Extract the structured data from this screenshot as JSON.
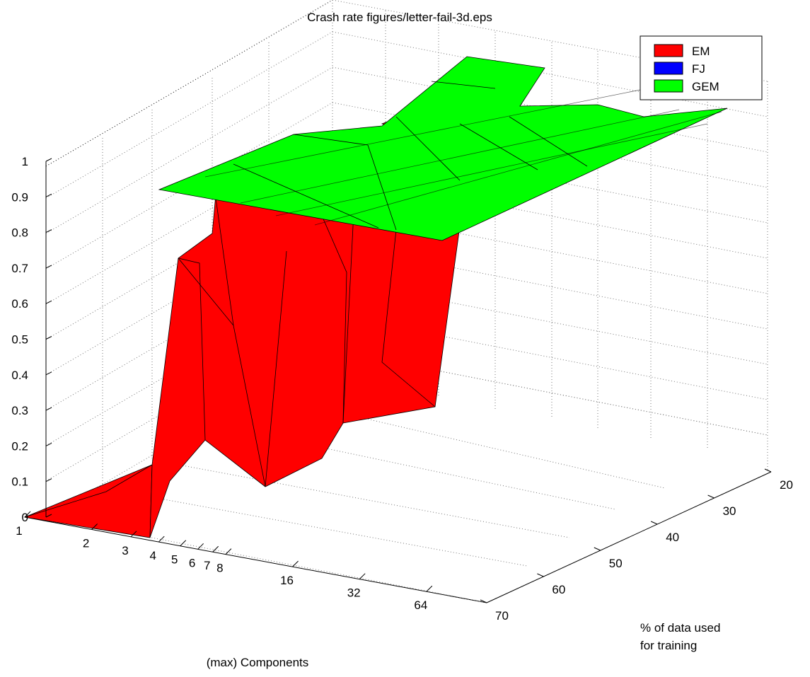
{
  "chart_data": {
    "type": "surface3d",
    "title": "Crash rate figures/letter-fail-3d.eps",
    "xlabel": "(max) Components",
    "ylabel": [
      "% of data used",
      "for training"
    ],
    "zlabel": "",
    "x_ticks": [
      "1",
      "2",
      "3",
      "4",
      "5",
      "6",
      "7",
      "8",
      "16",
      "32",
      "64"
    ],
    "y_ticks": [
      "20",
      "30",
      "40",
      "50",
      "60",
      "70"
    ],
    "z_ticks": [
      "0",
      "0.1",
      "0.2",
      "0.3",
      "0.4",
      "0.5",
      "0.6",
      "0.7",
      "0.8",
      "0.9",
      "1"
    ],
    "zlim": [
      0,
      1
    ],
    "grid": true,
    "legend_position": "top-right",
    "series": [
      {
        "name": "EM",
        "color": "#ff0000",
        "x_components": [
          1,
          2,
          3,
          4,
          8,
          16,
          32,
          64
        ],
        "z_at_70pct": [
          0.0,
          0.0,
          0.0,
          0.75,
          0.87,
          0.9,
          0.93,
          0.97
        ],
        "z_at_20pct": [
          0.0,
          0.0,
          0.1,
          0.9,
          0.97,
          1.0,
          1.0,
          1.0
        ]
      },
      {
        "name": "FJ",
        "color": "#0000ff",
        "note_hidden": true
      },
      {
        "name": "GEM",
        "color": "#00ff00",
        "x_components": [
          1,
          2,
          3,
          4,
          8,
          16,
          32,
          64
        ],
        "z_constant": 1.0
      }
    ]
  }
}
